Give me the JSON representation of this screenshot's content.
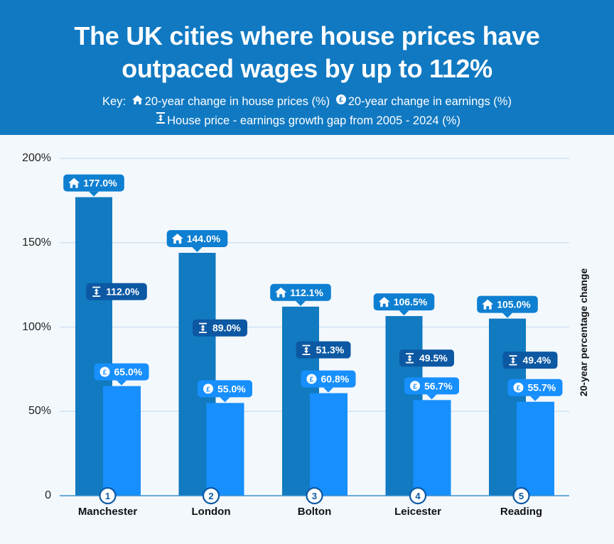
{
  "header": {
    "title_line1": "The UK cities where house prices have",
    "title_line2": "outpaced wages by up to 112%",
    "key_label": "Key:",
    "key_house": "20-year change in house prices (%)",
    "key_earnings": "20-year change in earnings (%)",
    "key_gap": "House price - earnings growth gap from 2005 - 2024 (%)"
  },
  "colors": {
    "header_bg": "#1079c2",
    "house_bar": "#117ac0",
    "earnings_bar": "#178ffd",
    "gap_label": "#0c58a3",
    "background": "#f3f8fd"
  },
  "chart_data": {
    "type": "bar",
    "title": "The UK cities where house prices have outpaced wages by up to 112%",
    "categories": [
      "Manchester",
      "London",
      "Bolton",
      "Leicester",
      "Reading"
    ],
    "ranks": [
      "1",
      "2",
      "3",
      "4",
      "5"
    ],
    "series": [
      {
        "name": "20-year change in house prices (%)",
        "values": [
          177.0,
          144.0,
          112.1,
          106.5,
          105.0
        ],
        "labels": [
          "177.0%",
          "144.0%",
          "112.1%",
          "106.5%",
          "105.0%"
        ]
      },
      {
        "name": "20-year change in earnings (%)",
        "values": [
          65.0,
          55.0,
          60.8,
          56.7,
          55.7
        ],
        "labels": [
          "65.0%",
          "55.0%",
          "60.8%",
          "56.7%",
          "55.7%"
        ]
      },
      {
        "name": "House price - earnings growth gap from 2005 - 2024 (%)",
        "values": [
          112.0,
          89.0,
          51.3,
          49.5,
          49.4
        ],
        "labels": [
          "112.0%",
          "89.0%",
          "51.3%",
          "49.5%",
          "49.4%"
        ]
      }
    ],
    "ylabel": "20-year percentage change",
    "xlabel": "",
    "ylim": [
      0,
      200
    ],
    "yticks": [
      0,
      50,
      100,
      150,
      200
    ],
    "ytick_labels": [
      "0",
      "50%",
      "100%",
      "150%",
      "200%"
    ],
    "grid": true,
    "legend": "top-center"
  }
}
